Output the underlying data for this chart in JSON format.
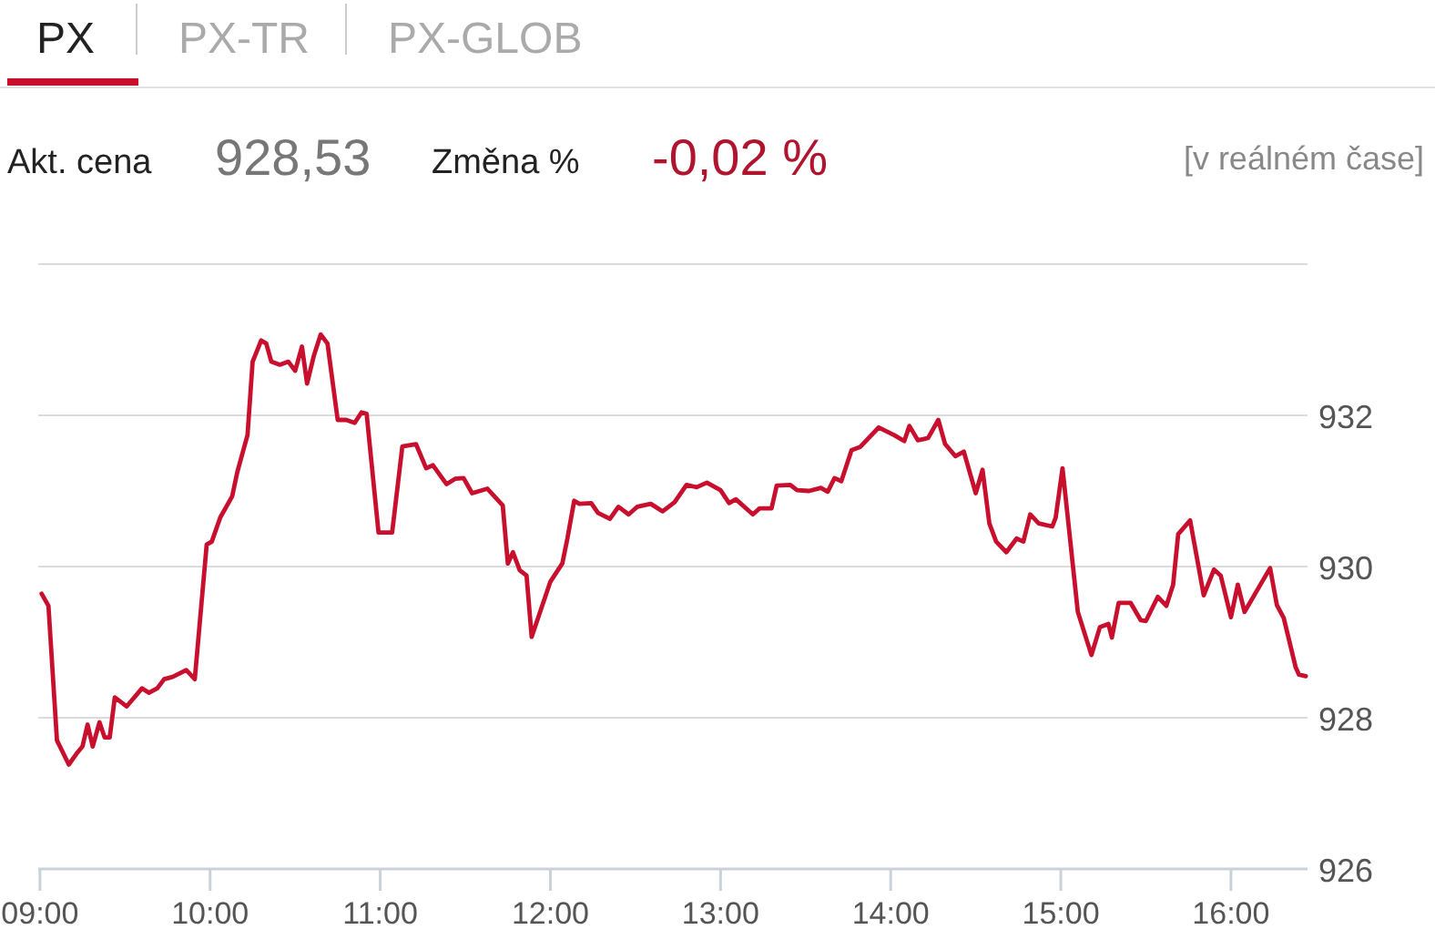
{
  "chart_data": {
    "type": "line",
    "annotations": [
      "PX",
      "PX-TR",
      "PX-GLOB",
      "Akt. cena",
      "928,53",
      "Změna %",
      "-0,02 %",
      "[v reálném čase]"
    ],
    "x": [
      9.01,
      9.05,
      9.1,
      9.17,
      9.22,
      9.25,
      9.28,
      9.31,
      9.35,
      9.38,
      9.41,
      9.44,
      9.51,
      9.6,
      9.64,
      9.69,
      9.73,
      9.78,
      9.86,
      9.91,
      9.98,
      10.01,
      10.06,
      10.13,
      10.16,
      10.22,
      10.25,
      10.3,
      10.33,
      10.36,
      10.41,
      10.46,
      10.5,
      10.54,
      10.57,
      10.61,
      10.65,
      10.69,
      10.75,
      10.8,
      10.85,
      10.89,
      10.92,
      10.99,
      11.07,
      11.13,
      11.21,
      11.27,
      11.31,
      11.39,
      11.44,
      11.49,
      11.54,
      11.63,
      11.72,
      11.75,
      11.78,
      11.82,
      11.86,
      11.89,
      12.0,
      12.07,
      12.1,
      12.14,
      12.17,
      12.24,
      12.28,
      12.35,
      12.4,
      12.46,
      12.51,
      12.59,
      12.66,
      12.73,
      12.8,
      12.86,
      12.92,
      13.0,
      13.05,
      13.09,
      13.19,
      13.23,
      13.3,
      13.33,
      13.41,
      13.45,
      13.52,
      13.59,
      13.63,
      13.67,
      13.71,
      13.77,
      13.82,
      13.93,
      14.02,
      14.08,
      14.11,
      14.16,
      14.22,
      14.28,
      14.32,
      14.38,
      14.43,
      14.5,
      14.54,
      14.58,
      14.62,
      14.68,
      14.74,
      14.78,
      14.82,
      14.87,
      14.95,
      14.97,
      15.01,
      15.1,
      15.18,
      15.23,
      15.28,
      15.3,
      15.34,
      15.41,
      15.47,
      15.5,
      15.57,
      15.62,
      15.66,
      15.69,
      15.76,
      15.84,
      15.9,
      15.94,
      16.0,
      16.04,
      16.08,
      16.23,
      16.27,
      16.31,
      16.38,
      16.4,
      16.44
    ],
    "series": [
      {
        "color": "#c8102e",
        "values": [
          929.64,
          929.48,
          927.7,
          927.38,
          927.54,
          927.62,
          927.91,
          927.62,
          927.94,
          927.74,
          927.74,
          928.27,
          928.15,
          928.39,
          928.33,
          928.39,
          928.51,
          928.54,
          928.63,
          928.51,
          930.29,
          930.33,
          930.65,
          930.93,
          931.25,
          931.74,
          932.71,
          932.99,
          932.95,
          932.71,
          932.67,
          932.71,
          932.59,
          932.91,
          932.42,
          932.79,
          933.07,
          932.95,
          931.94,
          931.94,
          931.9,
          932.04,
          932.02,
          930.45,
          930.45,
          931.59,
          931.62,
          931.3,
          931.34,
          931.09,
          931.16,
          931.17,
          930.97,
          931.03,
          930.81,
          930.04,
          930.19,
          929.95,
          929.88,
          929.07,
          929.8,
          930.04,
          930.37,
          930.87,
          930.83,
          930.84,
          930.71,
          930.63,
          930.79,
          930.69,
          930.79,
          930.83,
          930.73,
          930.85,
          931.08,
          931.05,
          931.11,
          931.01,
          930.84,
          930.89,
          930.69,
          930.77,
          930.77,
          931.07,
          931.08,
          931.01,
          931.0,
          931.04,
          930.99,
          931.17,
          931.13,
          931.54,
          931.58,
          931.84,
          931.74,
          931.66,
          931.86,
          931.67,
          931.7,
          931.94,
          931.62,
          931.46,
          931.52,
          930.97,
          931.28,
          930.57,
          930.33,
          930.19,
          930.37,
          930.33,
          930.69,
          930.57,
          930.53,
          930.65,
          931.3,
          929.4,
          928.83,
          929.2,
          929.24,
          929.06,
          929.52,
          929.52,
          929.29,
          929.28,
          929.6,
          929.48,
          929.76,
          930.43,
          930.61,
          929.62,
          929.96,
          929.88,
          929.33,
          929.76,
          929.4,
          929.98,
          929.49,
          929.32,
          928.67,
          928.57,
          928.55
        ]
      }
    ],
    "xlim": [
      8.99,
      16.45
    ],
    "xticks": [
      {
        "value": 9,
        "label": "09:00"
      },
      {
        "value": 10,
        "label": "10:00"
      },
      {
        "value": 11,
        "label": "11:00"
      },
      {
        "value": 12,
        "label": "12:00"
      },
      {
        "value": 13,
        "label": "13:00"
      },
      {
        "value": 14,
        "label": "14:00"
      },
      {
        "value": 15,
        "label": "15:00"
      },
      {
        "value": 16,
        "label": "16:00"
      }
    ],
    "ylim": [
      926,
      934
    ],
    "yticks": [
      926,
      928,
      930,
      932,
      {
        "value": 934,
        "label": null
      }
    ],
    "grid": "y",
    "marker": "none",
    "line_style": "solid"
  }
}
